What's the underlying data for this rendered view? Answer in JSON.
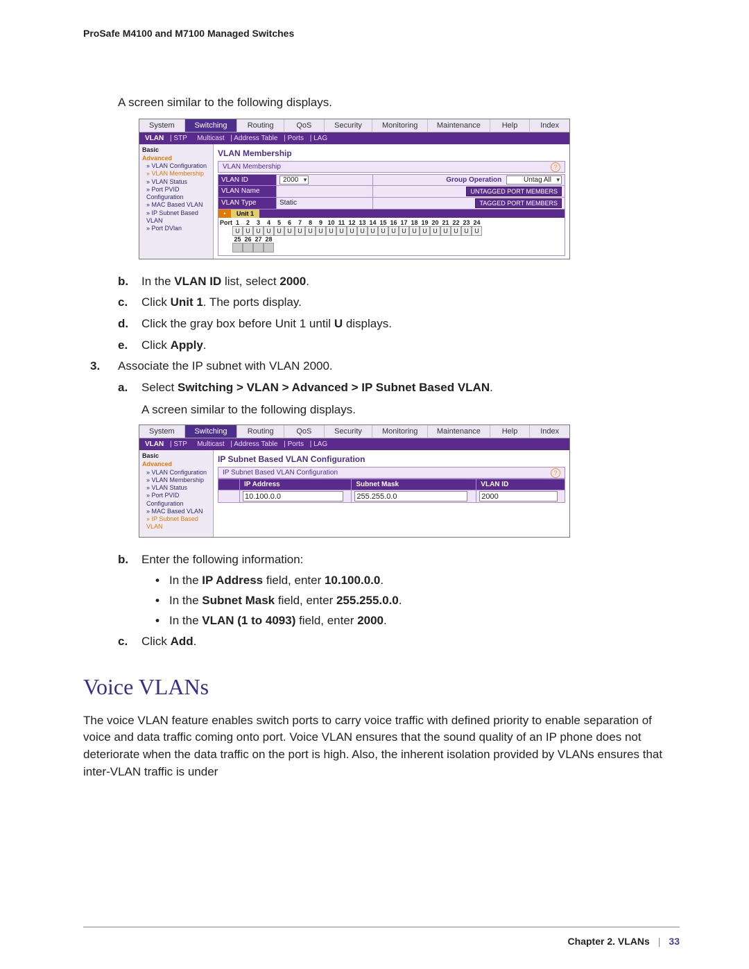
{
  "doc": {
    "header": "ProSafe M4100 and M7100 Managed Switches",
    "footer_chapter": "Chapter 2.  VLANs",
    "footer_page": "33"
  },
  "text": {
    "intro1": "A screen similar to the following displays.",
    "step_b": "In the ",
    "step_b_bold": "VLAN ID",
    "step_b_tail": " list, select ",
    "step_b_num": "2000",
    "step_b_period": ".",
    "step_c": "Click ",
    "step_c_bold": "Unit 1",
    "step_c_tail": ". The ports display.",
    "step_d_pre": "Click the gray box before Unit 1 until ",
    "step_d_bold": "U",
    "step_d_tail": " displays.",
    "step_e": "Click ",
    "step_e_bold": "Apply",
    "step_e_period": ".",
    "step3": "Associate the IP subnet with VLAN 2000.",
    "step3a": "Select ",
    "step3a_bold": "Switching > VLAN > Advanced > IP Subnet Based VLAN",
    "step3a_period": ".",
    "intro2": "A screen similar to the following displays.",
    "step3b": "Enter the following information:",
    "bul1_pre": "In the ",
    "bul1_b": "IP Address",
    "bul1_mid": " field, enter ",
    "bul1_v": "10.100.0.0",
    "bul1_p": ".",
    "bul2_pre": "In the ",
    "bul2_b": "Subnet Mask",
    "bul2_mid": " field, enter ",
    "bul2_v": "255.255.0.0",
    "bul2_p": ".",
    "bul3_pre": "In the ",
    "bul3_b": "VLAN (1 to 4093)",
    "bul3_mid": " field, enter ",
    "bul3_v": "2000",
    "bul3_p": ".",
    "step3c": "Click ",
    "step3c_b": "Add",
    "step3c_p": ".",
    "heading": "Voice VLANs",
    "para": "The voice VLAN feature enables switch ports to carry voice traffic with defined priority to enable separation of voice and data traffic coming onto port. Voice VLAN ensures that the sound quality of an IP phone does not deteriorate when the data traffic on the port is high. Also, the inherent isolation provided by VLANs ensures that inter-VLAN traffic is under"
  },
  "ui": {
    "tabs": [
      "System",
      "Switching",
      "Routing",
      "QoS",
      "Security",
      "Monitoring",
      "Maintenance",
      "Help",
      "Index"
    ],
    "active_tab": "Switching",
    "subnav": [
      "VLAN",
      "STP",
      "Multicast",
      "Address Table",
      "Ports",
      "LAG"
    ],
    "subnav_active": "VLAN",
    "sidebar1": {
      "basic": "Basic",
      "advanced": "Advanced",
      "items": [
        "» VLAN Configuration",
        "» VLAN Membership",
        "» VLAN Status",
        "» Port PVID Configuration",
        "» MAC Based VLAN",
        "» IP Subnet Based VLAN",
        "» Port DVlan"
      ],
      "selected_index": 1
    },
    "sidebar2": {
      "basic": "Basic",
      "advanced": "Advanced",
      "items": [
        "» VLAN Configuration",
        "» VLAN Membership",
        "» VLAN Status",
        "» Port PVID Configuration",
        "» MAC Based VLAN",
        "» IP Subnet Based VLAN"
      ],
      "selected_index": 5
    },
    "panel1": {
      "title": "VLAN Membership",
      "bar": "VLAN Membership",
      "rows": {
        "vlan_id_label": "VLAN ID",
        "vlan_id_value": "2000",
        "vlan_name_label": "VLAN Name",
        "vlan_name_value": "",
        "vlan_type_label": "VLAN Type",
        "vlan_type_value": "Static",
        "group_op_label": "Group Operation",
        "group_op_value": "Untag All",
        "btn_untagged": "UNTAGGED PORT MEMBERS",
        "btn_tagged": "TAGGED PORT MEMBERS"
      },
      "unit_label": "Unit 1",
      "port_label": "Port",
      "ports_row1": [
        1,
        2,
        3,
        4,
        5,
        6,
        7,
        8,
        9,
        10,
        11,
        12,
        13,
        14,
        15,
        16,
        17,
        18,
        19,
        20,
        21,
        22,
        23,
        24
      ],
      "ports_row2": [
        25,
        26,
        27,
        28
      ],
      "port_char": "U"
    },
    "panel2": {
      "title": "IP Subnet Based VLAN Configuration",
      "bar": "IP Subnet Based VLAN Configuration",
      "cols": [
        "IP Address",
        "Subnet Mask",
        "VLAN ID"
      ],
      "row": {
        "ip": "10.100.0.0",
        "mask": "255.255.0.0",
        "vlan": "2000"
      }
    }
  },
  "markers": {
    "b": "b.",
    "c": "c.",
    "d": "d.",
    "e": "e.",
    "n3": "3.",
    "a": "a.",
    "dot": "•"
  }
}
